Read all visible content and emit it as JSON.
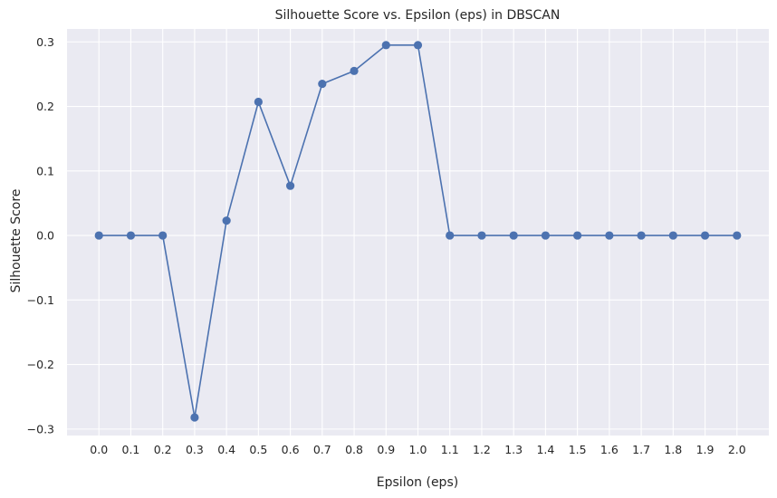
{
  "chart_data": {
    "type": "line",
    "title": "Silhouette Score vs. Epsilon (eps) in DBSCAN",
    "xlabel": "Epsilon (eps)",
    "ylabel": "Silhouette Score",
    "x": [
      0.0,
      0.1,
      0.2,
      0.3,
      0.4,
      0.5,
      0.6,
      0.7,
      0.8,
      0.9,
      1.0,
      1.1,
      1.2,
      1.3,
      1.4,
      1.5,
      1.6,
      1.7,
      1.8,
      1.9,
      2.0
    ],
    "x_tick_labels": [
      "0.0",
      "0.1",
      "0.2",
      "0.3",
      "0.4",
      "0.5",
      "0.6",
      "0.7",
      "0.8",
      "0.9",
      "1.0",
      "1.1",
      "1.2",
      "1.3",
      "1.4",
      "1.5",
      "1.6",
      "1.7",
      "1.8",
      "1.9",
      "2.0"
    ],
    "series": [
      {
        "values": [
          0.0,
          0.0,
          0.0,
          -0.282,
          0.023,
          0.207,
          0.077,
          0.235,
          0.255,
          0.295,
          0.295,
          0.0,
          0.0,
          0.0,
          0.0,
          0.0,
          0.0,
          0.0,
          0.0,
          0.0,
          0.0
        ],
        "color": "#4c72b0",
        "marker": "circle"
      }
    ],
    "y_ticks": [
      -0.3,
      -0.2,
      -0.1,
      0.0,
      0.1,
      0.2,
      0.3
    ],
    "y_tick_labels": [
      "−0.3",
      "−0.2",
      "−0.1",
      "0.0",
      "0.1",
      "0.2",
      "0.3"
    ],
    "xlim": [
      -0.1,
      2.1
    ],
    "ylim": [
      -0.31,
      0.32
    ],
    "grid": true,
    "background_color": "#eaeaf2",
    "grid_color": "#ffffff"
  }
}
